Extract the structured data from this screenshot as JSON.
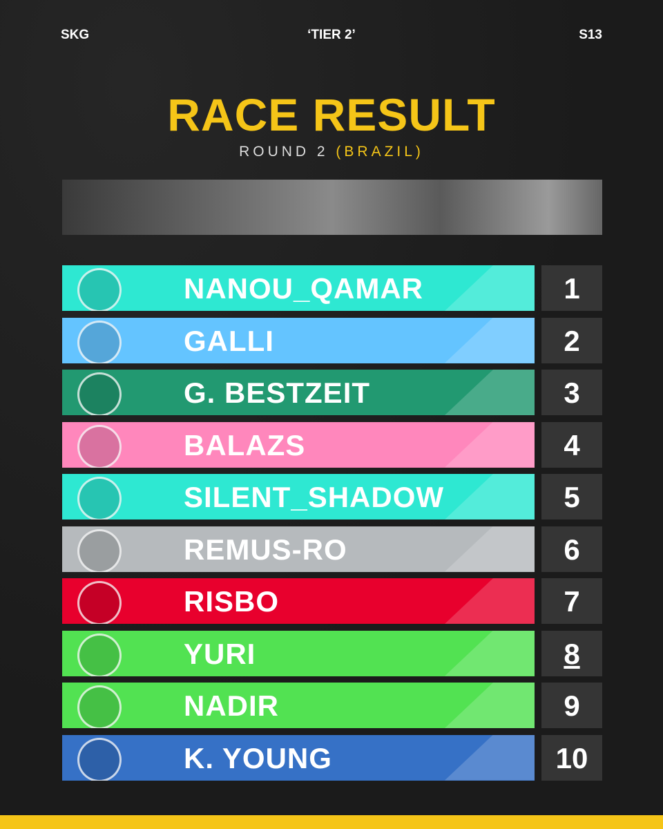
{
  "header": {
    "left": "SKG",
    "center": "‘TIER 2’",
    "right": "S13"
  },
  "title": "RACE RESULT",
  "subtitle": {
    "round": "ROUND 2",
    "location": "(BRAZIL)"
  },
  "results": [
    {
      "driver": "NANOU_QAMAR",
      "position": 1,
      "color": "#2ee8d2"
    },
    {
      "driver": "GALLI",
      "position": 2,
      "color": "#64c4ff"
    },
    {
      "driver": "G. BESTZEIT",
      "position": 3,
      "color": "#229971"
    },
    {
      "driver": "BALAZS",
      "position": 4,
      "color": "#ff87bc"
    },
    {
      "driver": "SILENT_SHADOW",
      "position": 5,
      "color": "#2ee8d2"
    },
    {
      "driver": "REMUS-RO",
      "position": 6,
      "color": "#b6babd"
    },
    {
      "driver": "RISBO",
      "position": 7,
      "color": "#e8002d"
    },
    {
      "driver": "YURI",
      "position": 8,
      "color": "#52e252"
    },
    {
      "driver": "NADIR",
      "position": 9,
      "color": "#52e252"
    },
    {
      "driver": "K. YOUNG",
      "position": 10,
      "color": "#3671c6"
    }
  ]
}
